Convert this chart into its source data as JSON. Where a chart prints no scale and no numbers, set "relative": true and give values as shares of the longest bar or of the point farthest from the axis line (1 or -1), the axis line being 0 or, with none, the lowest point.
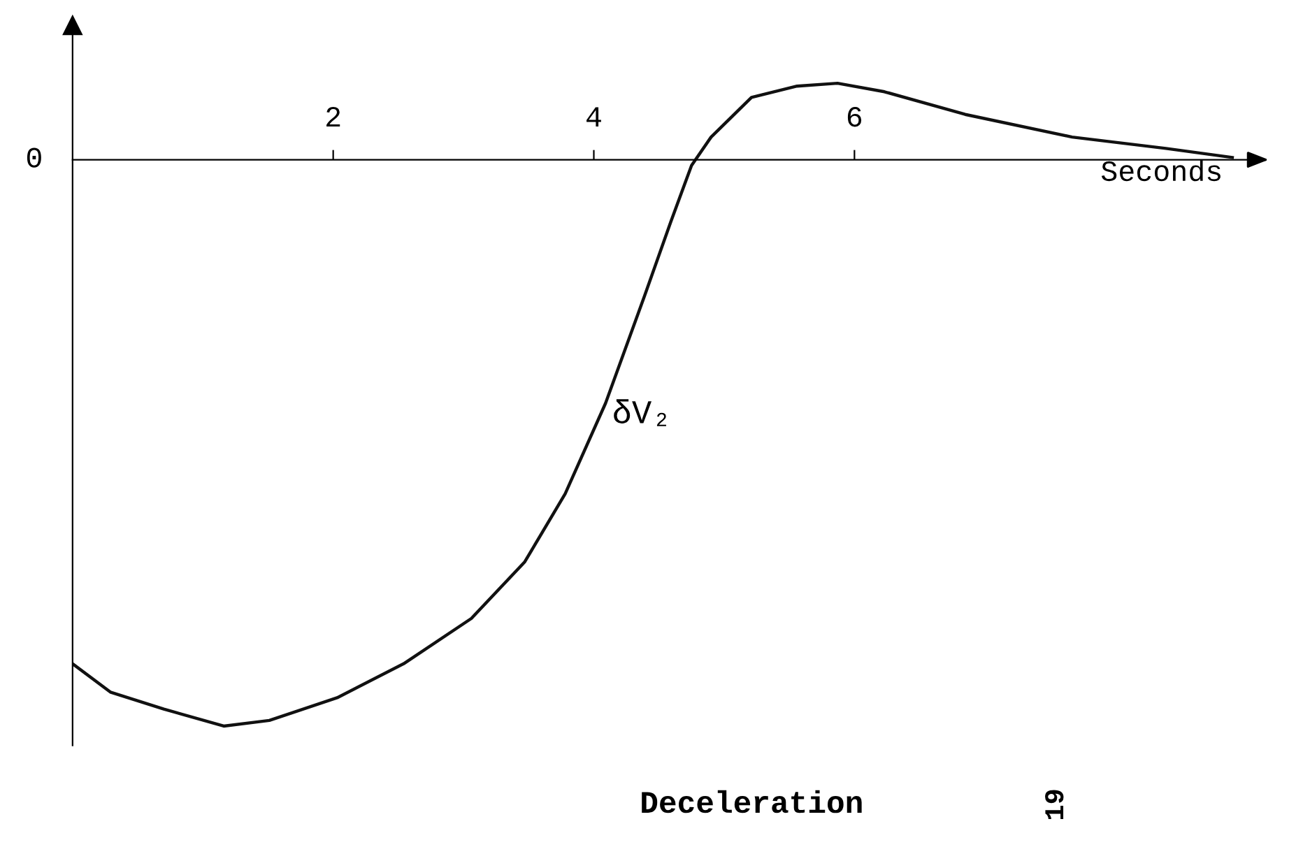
{
  "chart_data": {
    "type": "line",
    "relative": true,
    "xlabel": "Seconds",
    "title": "Deceleration",
    "annotations": [
      "0",
      "19"
    ],
    "x": [
      0,
      0.29,
      0.7,
      1.16,
      1.51,
      2.03,
      2.54,
      3.06,
      3.47,
      3.78,
      4.09,
      4.39,
      4.59,
      4.75,
      4.9,
      5.21,
      5.56,
      5.87,
      6.23,
      6.85,
      7.67,
      8.39,
      8.9
    ],
    "series": [
      {
        "name": "δV₂",
        "color": "#111111",
        "values": [
          -0.89,
          -0.94,
          -0.97,
          -1,
          -0.99,
          -0.95,
          -0.89,
          -0.81,
          -0.71,
          -0.59,
          -0.43,
          -0.24,
          -0.11,
          -0.01,
          0.04,
          0.11,
          0.13,
          0.135,
          0.12,
          0.08,
          0.04,
          0.02,
          0.004
        ]
      }
    ],
    "xlim": [
      0,
      9.1
    ],
    "xticks": [
      2,
      4,
      6
    ],
    "grid": false,
    "legend": false,
    "marker": "none",
    "line_style": "solid"
  }
}
